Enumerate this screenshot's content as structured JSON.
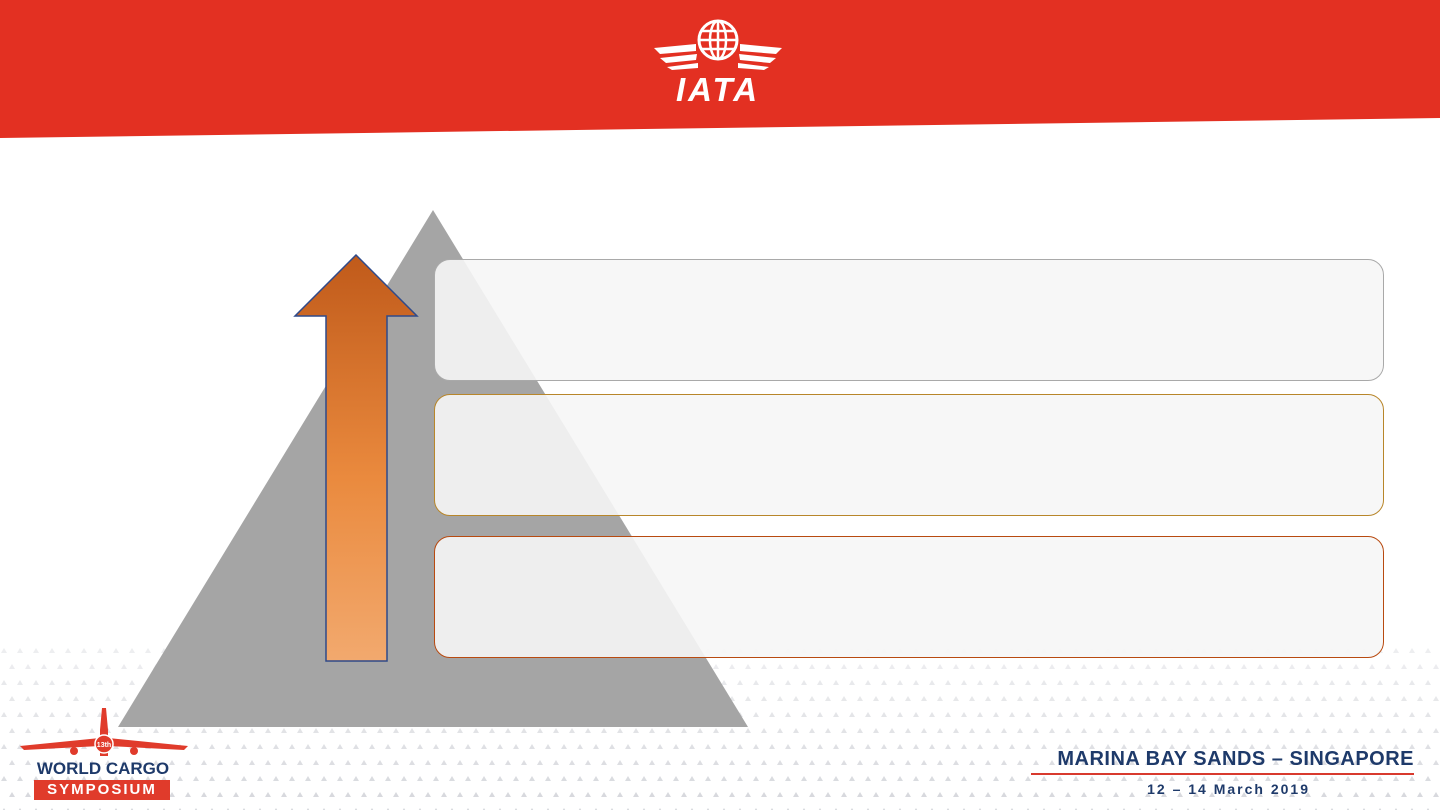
{
  "header": {
    "brand_color": "#e33022",
    "logo_icon": "iata-globe-wings-icon",
    "logo_text": "IATA"
  },
  "diagram": {
    "pyramid_color": "#a5a5a5",
    "arrow_gradient": [
      "#c05a1a",
      "#f2a96e"
    ],
    "arrow_direction": "up",
    "tiers": [
      {
        "text": "",
        "border_color": "#a9a9a9"
      },
      {
        "text": "",
        "border_color": "#b8862a"
      },
      {
        "text": "",
        "border_color": "#b84a10"
      }
    ]
  },
  "footer": {
    "event_badge": "13th",
    "event_title_line1": "WORLD CARGO",
    "event_title_line2": "SYMPOSIUM",
    "venue": "MARINA BAY SANDS – SINGAPORE",
    "dates": "12 – 14 March 2019",
    "accent_color": "#1e3a6a"
  }
}
